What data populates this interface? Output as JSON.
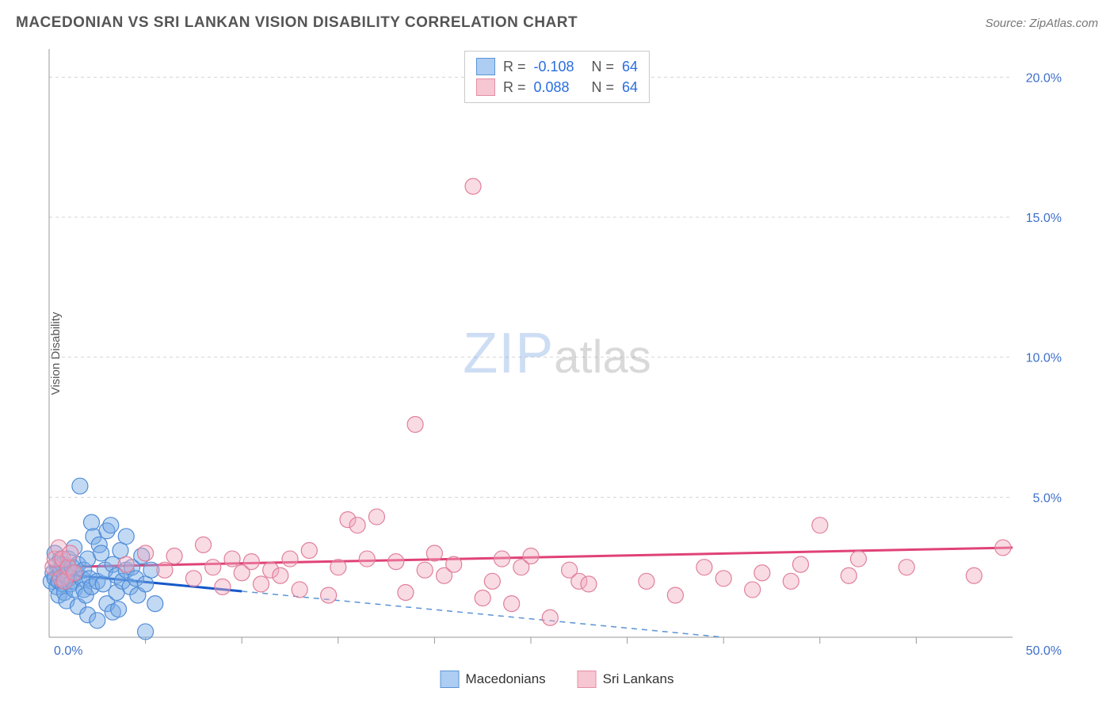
{
  "title": "MACEDONIAN VS SRI LANKAN VISION DISABILITY CORRELATION CHART",
  "source": "Source: ZipAtlas.com",
  "ylabel": "Vision Disability",
  "watermark": {
    "zip": "ZIP",
    "atlas": "atlas"
  },
  "legend_top": {
    "series": [
      {
        "swatch_fill": "#aecdf2",
        "swatch_stroke": "#5a94d6",
        "r_label": "R =",
        "r_value": "-0.108",
        "n_label": "N =",
        "n_value": "64"
      },
      {
        "swatch_fill": "#f6c6d2",
        "swatch_stroke": "#e48fa5",
        "r_label": "R =",
        "r_value": "0.088",
        "n_label": "N =",
        "n_value": "64"
      }
    ]
  },
  "legend_bottom": {
    "items": [
      {
        "swatch_fill": "#aecdf2",
        "swatch_stroke": "#5a94d6",
        "label": "Macedonians"
      },
      {
        "swatch_fill": "#f6c6d2",
        "swatch_stroke": "#e48fa5",
        "label": "Sri Lankans"
      }
    ]
  },
  "chart": {
    "type": "scatter",
    "background_color": "#ffffff",
    "grid_color": "#d4d4d4",
    "axis_color": "#999999",
    "label_fontsize": 15,
    "tick_fontsize": 16,
    "tick_color": "#3e70c9",
    "xlim": [
      0,
      50
    ],
    "ylim": [
      0,
      21
    ],
    "x_ticks": [
      0,
      50
    ],
    "x_tick_labels": [
      "0.0%",
      "50.0%"
    ],
    "x_minor_ticks": [
      5,
      10,
      15,
      20,
      25,
      30,
      35,
      40,
      45
    ],
    "y_ticks": [
      5,
      10,
      15,
      20
    ],
    "y_tick_labels": [
      "5.0%",
      "10.0%",
      "15.0%",
      "20.0%"
    ],
    "marker_radius": 10,
    "marker_stroke_width": 1.2,
    "series_a": {
      "name": "Macedonians",
      "fill": "rgba(120, 170, 230, 0.45)",
      "stroke": "#4f8cd6",
      "trend_color": "#1558c9",
      "trend_width": 3,
      "trend_dash_color": "#5a94d6",
      "trend": {
        "x1": 0,
        "y1": 2.3,
        "x2": 35,
        "y2": 0.0,
        "solid_until": 10
      },
      "points": [
        [
          0.1,
          2.0
        ],
        [
          0.2,
          2.3
        ],
        [
          0.3,
          2.1
        ],
        [
          0.3,
          3.0
        ],
        [
          0.4,
          1.8
        ],
        [
          0.4,
          2.6
        ],
        [
          0.5,
          2.0
        ],
        [
          0.5,
          1.5
        ],
        [
          0.6,
          2.4
        ],
        [
          0.6,
          2.8
        ],
        [
          0.7,
          1.9
        ],
        [
          0.7,
          2.6
        ],
        [
          0.8,
          2.2
        ],
        [
          0.8,
          1.6
        ],
        [
          0.9,
          2.4
        ],
        [
          0.9,
          1.3
        ],
        [
          1.0,
          2.1
        ],
        [
          1.0,
          2.8
        ],
        [
          1.1,
          1.9
        ],
        [
          1.2,
          2.0
        ],
        [
          1.2,
          2.5
        ],
        [
          1.3,
          1.7
        ],
        [
          1.3,
          3.2
        ],
        [
          1.4,
          2.3
        ],
        [
          1.5,
          1.1
        ],
        [
          1.5,
          2.6
        ],
        [
          1.6,
          5.4
        ],
        [
          1.7,
          2.1
        ],
        [
          1.8,
          1.7
        ],
        [
          1.8,
          2.4
        ],
        [
          1.9,
          1.5
        ],
        [
          2.0,
          2.8
        ],
        [
          2.0,
          0.8
        ],
        [
          2.1,
          2.1
        ],
        [
          2.2,
          1.8
        ],
        [
          2.2,
          4.1
        ],
        [
          2.3,
          3.6
        ],
        [
          2.5,
          2.0
        ],
        [
          2.5,
          0.6
        ],
        [
          2.6,
          3.3
        ],
        [
          2.8,
          1.9
        ],
        [
          2.9,
          2.4
        ],
        [
          3.0,
          1.2
        ],
        [
          3.0,
          3.8
        ],
        [
          3.2,
          4.0
        ],
        [
          3.3,
          2.6
        ],
        [
          3.3,
          0.9
        ],
        [
          3.5,
          2.2
        ],
        [
          3.5,
          1.6
        ],
        [
          3.7,
          3.1
        ],
        [
          3.8,
          2.0
        ],
        [
          4.0,
          2.4
        ],
        [
          4.0,
          3.6
        ],
        [
          4.2,
          1.8
        ],
        [
          4.3,
          2.5
        ],
        [
          4.5,
          2.1
        ],
        [
          4.6,
          1.5
        ],
        [
          4.8,
          2.9
        ],
        [
          5.0,
          1.9
        ],
        [
          5.0,
          0.2
        ],
        [
          5.3,
          2.4
        ],
        [
          5.5,
          1.2
        ],
        [
          3.6,
          1.0
        ],
        [
          2.7,
          3.0
        ]
      ]
    },
    "series_b": {
      "name": "Sri Lankans",
      "fill": "rgba(240, 170, 190, 0.42)",
      "stroke": "#e07f9a",
      "trend_color": "#e04278",
      "trend_width": 3,
      "trend": {
        "x1": 0,
        "y1": 2.5,
        "x2": 50,
        "y2": 3.2
      },
      "points": [
        [
          0.2,
          2.5
        ],
        [
          0.3,
          2.8
        ],
        [
          0.5,
          3.2
        ],
        [
          0.6,
          2.1
        ],
        [
          0.7,
          2.8
        ],
        [
          0.8,
          2.0
        ],
        [
          1.0,
          2.5
        ],
        [
          1.1,
          3.0
        ],
        [
          1.3,
          2.3
        ],
        [
          4.0,
          2.6
        ],
        [
          5.0,
          3.0
        ],
        [
          6.0,
          2.4
        ],
        [
          6.5,
          2.9
        ],
        [
          7.5,
          2.1
        ],
        [
          8.0,
          3.3
        ],
        [
          8.5,
          2.5
        ],
        [
          9.0,
          1.8
        ],
        [
          9.5,
          2.8
        ],
        [
          10.0,
          2.3
        ],
        [
          10.5,
          2.7
        ],
        [
          11.0,
          1.9
        ],
        [
          11.5,
          2.4
        ],
        [
          12.5,
          2.8
        ],
        [
          13.0,
          1.7
        ],
        [
          13.5,
          3.1
        ],
        [
          14.5,
          1.5
        ],
        [
          15.0,
          2.5
        ],
        [
          15.5,
          4.2
        ],
        [
          16.0,
          4.0
        ],
        [
          16.5,
          2.8
        ],
        [
          17.0,
          4.3
        ],
        [
          18.0,
          2.7
        ],
        [
          18.5,
          1.6
        ],
        [
          19.5,
          2.4
        ],
        [
          19.0,
          7.6
        ],
        [
          20.0,
          3.0
        ],
        [
          20.5,
          2.2
        ],
        [
          21.0,
          2.6
        ],
        [
          22.0,
          16.1
        ],
        [
          22.5,
          1.4
        ],
        [
          23.0,
          2.0
        ],
        [
          23.5,
          2.8
        ],
        [
          24.0,
          1.2
        ],
        [
          24.5,
          2.5
        ],
        [
          25.0,
          2.9
        ],
        [
          26.0,
          0.7
        ],
        [
          27.0,
          2.4
        ],
        [
          27.5,
          2.0
        ],
        [
          28.0,
          1.9
        ],
        [
          31.0,
          2.0
        ],
        [
          32.5,
          1.5
        ],
        [
          34.0,
          2.5
        ],
        [
          35.0,
          2.1
        ],
        [
          36.5,
          1.7
        ],
        [
          37.0,
          2.3
        ],
        [
          38.5,
          2.0
        ],
        [
          39.0,
          2.6
        ],
        [
          40.0,
          4.0
        ],
        [
          41.5,
          2.2
        ],
        [
          42.0,
          2.8
        ],
        [
          44.5,
          2.5
        ],
        [
          48.0,
          2.2
        ],
        [
          49.5,
          3.2
        ],
        [
          12.0,
          2.2
        ]
      ]
    }
  }
}
